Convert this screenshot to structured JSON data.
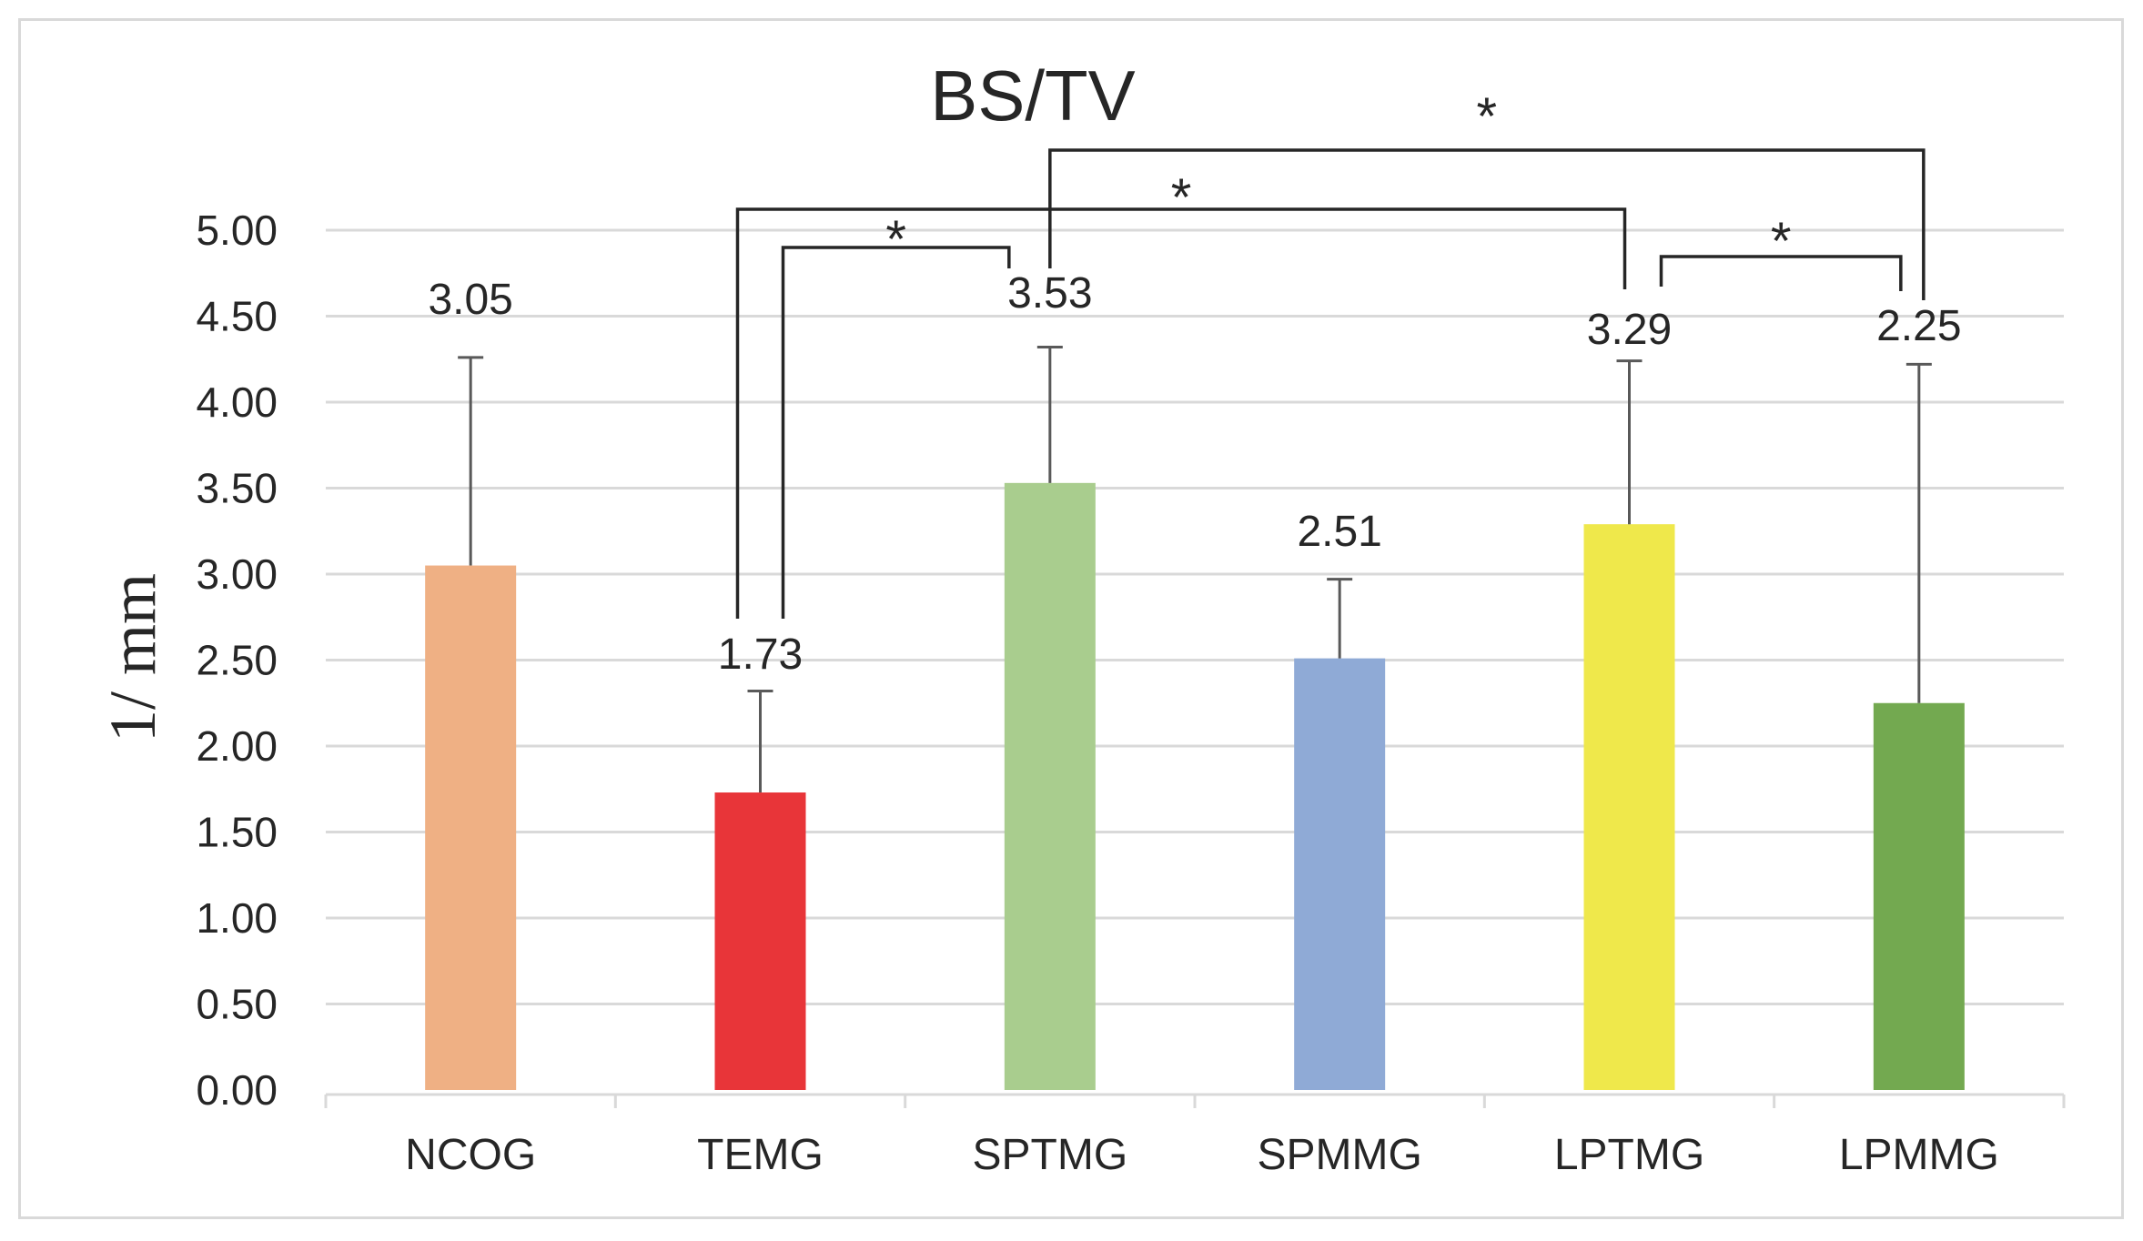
{
  "chart_data": {
    "type": "bar",
    "title": "BS/TV",
    "xlabel": "",
    "ylabel": "1/ mm",
    "ylim": [
      0,
      5
    ],
    "ytick_step": 0.5,
    "ytick_labels": [
      "0.00",
      "0.50",
      "1.00",
      "1.50",
      "2.00",
      "2.50",
      "3.00",
      "3.50",
      "4.00",
      "4.50",
      "5.00"
    ],
    "grid": true,
    "categories": [
      "NCOG",
      "TEMG",
      "SPTMG",
      "SPMMG",
      "LPTMG",
      "LPMMG"
    ],
    "values": [
      3.05,
      1.73,
      3.53,
      2.51,
      3.29,
      2.25
    ],
    "error_plus": [
      1.21,
      0.59,
      0.79,
      0.46,
      0.95,
      1.97
    ],
    "data_labels": [
      "3.05",
      "1.73",
      "3.53",
      "2.51",
      "3.29",
      "2.25"
    ],
    "colors": [
      "#EFB084",
      "#E83539",
      "#A9CD8E",
      "#8FAAD6",
      "#EFE84B",
      "#73A950"
    ],
    "significance": [
      {
        "from": "TEMG",
        "to": "SPTMG",
        "label": "*"
      },
      {
        "from": "TEMG",
        "to": "LPTMG",
        "label": "*"
      },
      {
        "from": "SPTMG",
        "to": "LPMMG",
        "label": "*"
      },
      {
        "from": "LPTMG",
        "to": "LPMMG",
        "label": "*"
      }
    ]
  }
}
